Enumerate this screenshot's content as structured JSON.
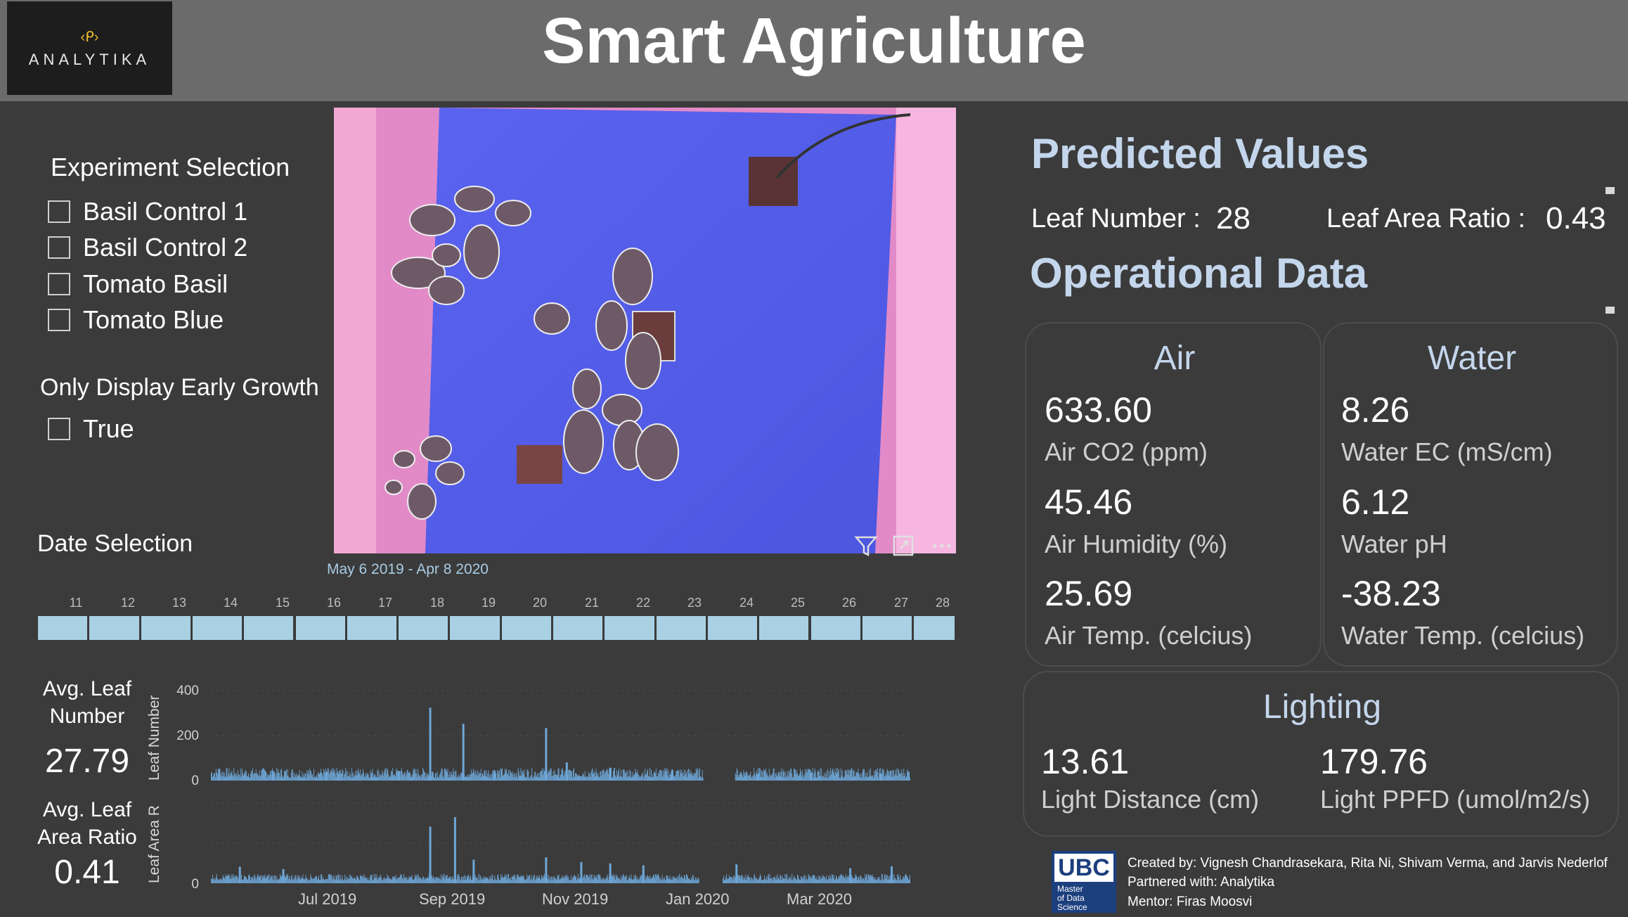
{
  "header": {
    "title": "Smart Agriculture",
    "logo_mark": "‹ᑭ›",
    "logo_text": "ANALYTIKA"
  },
  "experiment_selection": {
    "label": "Experiment Selection",
    "options": [
      {
        "label": "Basil Control 1",
        "checked": false
      },
      {
        "label": "Basil Control 2",
        "checked": false
      },
      {
        "label": "Tomato Basil",
        "checked": false
      },
      {
        "label": "Tomato Blue",
        "checked": false
      }
    ]
  },
  "early_growth": {
    "label": "Only Display Early Growth",
    "option": {
      "label": "True",
      "checked": false
    }
  },
  "date_selection": {
    "label": "Date Selection",
    "range": "May 6 2019 - Apr 8 2020",
    "ticks": [
      "11",
      "12",
      "13",
      "14",
      "15",
      "16",
      "17",
      "18",
      "19",
      "20",
      "21",
      "22",
      "23",
      "24",
      "25",
      "26",
      "27",
      "28"
    ]
  },
  "visual_controls": [
    "filter-icon",
    "expand-icon",
    "more-options-icon"
  ],
  "kpis": {
    "leaf_number": {
      "label_line1": "Avg. Leaf",
      "label_line2": "Number",
      "value": "27.79"
    },
    "leaf_area": {
      "label_line1": "Avg. Leaf",
      "label_line2": "Area Ratio",
      "value": "0.41"
    }
  },
  "chart_data": [
    {
      "type": "bar",
      "ylabel": "Leaf Number",
      "ylim": [
        0,
        420
      ],
      "yticks": [
        "400",
        "200",
        "0"
      ],
      "x_ticks": [
        "Jul 2019",
        "Sep 2019",
        "Nov 2019",
        "Jan 2020",
        "Mar 2020"
      ],
      "x_range": [
        "2019-05-06",
        "2020-04-08"
      ],
      "color": "#6ea7d8",
      "baseline_band": [
        12,
        60
      ],
      "gap": [
        "2019-12-30",
        "2020-01-14"
      ],
      "values": [
        {
          "date": "2019-05-10",
          "y": 55
        },
        {
          "date": "2019-06-05",
          "y": 45
        },
        {
          "date": "2019-07-01",
          "y": 40
        },
        {
          "date": "2019-08-05",
          "y": 44
        },
        {
          "date": "2019-08-20",
          "y": 340
        },
        {
          "date": "2019-09-05",
          "y": 265
        },
        {
          "date": "2019-09-20",
          "y": 48
        },
        {
          "date": "2019-10-15",
          "y": 245
        },
        {
          "date": "2019-10-25",
          "y": 85
        },
        {
          "date": "2019-11-15",
          "y": 60
        },
        {
          "date": "2019-12-15",
          "y": 50
        },
        {
          "date": "2020-01-25",
          "y": 30
        },
        {
          "date": "2020-02-20",
          "y": 38
        },
        {
          "date": "2020-03-25",
          "y": 32
        }
      ]
    },
    {
      "type": "bar",
      "ylabel": "Leaf Area R",
      "ylim": [
        0,
        1.7
      ],
      "yticks": [
        "0"
      ],
      "x_ticks": [
        "Jul 2019",
        "Sep 2019",
        "Nov 2019",
        "Jan 2020",
        "Mar 2020"
      ],
      "x_range": [
        "2019-05-06",
        "2020-04-08"
      ],
      "color": "#6ea7d8",
      "baseline_band": [
        0.06,
        0.2
      ],
      "gap": [
        "2019-12-28",
        "2020-01-08"
      ],
      "values": [
        {
          "date": "2019-05-20",
          "y": 0.35
        },
        {
          "date": "2019-06-10",
          "y": 0.3
        },
        {
          "date": "2019-08-20",
          "y": 1.2
        },
        {
          "date": "2019-09-01",
          "y": 1.4
        },
        {
          "date": "2019-09-10",
          "y": 0.5
        },
        {
          "date": "2019-10-15",
          "y": 0.55
        },
        {
          "date": "2019-11-01",
          "y": 0.45
        },
        {
          "date": "2019-11-15",
          "y": 0.42
        },
        {
          "date": "2019-12-01",
          "y": 0.38
        },
        {
          "date": "2020-01-15",
          "y": 0.4
        },
        {
          "date": "2020-03-10",
          "y": 0.32
        },
        {
          "date": "2020-03-30",
          "y": 0.36
        }
      ]
    }
  ],
  "predicted": {
    "heading": "Predicted Values",
    "leaf_number_label": "Leaf Number :",
    "leaf_number_value": "28",
    "leaf_area_label": "Leaf Area Ratio :",
    "leaf_area_value": "0.43"
  },
  "operational": {
    "heading": "Operational Data",
    "air": {
      "title": "Air",
      "items": [
        {
          "value": "633.60",
          "label": "Air CO2 (ppm)"
        },
        {
          "value": "45.46",
          "label": "Air Humidity (%)"
        },
        {
          "value": "25.69",
          "label": "Air Temp. (celcius)"
        }
      ]
    },
    "water": {
      "title": "Water",
      "items": [
        {
          "value": "8.26",
          "label": "Water EC (mS/cm)"
        },
        {
          "value": "6.12",
          "label": "Water pH"
        },
        {
          "value": "-38.23",
          "label": "Water Temp. (celcius)"
        }
      ]
    },
    "lighting": {
      "title": "Lighting",
      "items": [
        {
          "value": "13.61",
          "label": "Light Distance (cm)"
        },
        {
          "value": "179.76",
          "label": "Light PPFD (umol/m2/s)"
        }
      ]
    }
  },
  "credits": {
    "ubc_logo": "UBC",
    "ubc_sub": [
      "Master",
      "of Data",
      "Science"
    ],
    "created_by": "Created by: Vignesh Chandrasekara, Rita Ni, Shivam Verma, and Jarvis Nederlof",
    "partnered": "Partnered with: Analytika",
    "mentor": "Mentor: Firas Moosvi"
  },
  "colors": {
    "background": "#3b3b3b",
    "header": "#6b6b6b",
    "heading_blue": "#c4d6ec",
    "timeline": "#a9d1e3",
    "chart_bars": "#6ea7d8"
  }
}
